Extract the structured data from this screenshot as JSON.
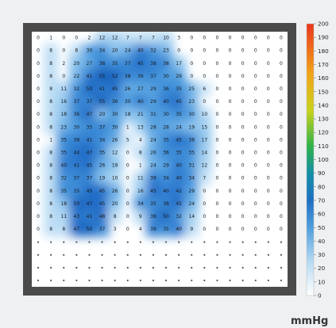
{
  "chart_data": {
    "type": "heatmap",
    "title": "",
    "xlabel": "",
    "ylabel": "",
    "unit": "mmHg",
    "color_scale": {
      "min": 0,
      "max": 200,
      "ticks": [
        200,
        190,
        180,
        170,
        160,
        150,
        140,
        130,
        120,
        110,
        100,
        90,
        80,
        70,
        60,
        50,
        40,
        30,
        20,
        10,
        0
      ],
      "colors": [
        "#ffffff",
        "#9fd0f0",
        "#4f9fdc",
        "#1f6fc4",
        "#138fa6",
        "#2fb24a",
        "#c8d21e",
        "#f2a21a",
        "#e8361c"
      ]
    },
    "rows": 20,
    "cols": 20,
    "values": [
      [
        0,
        1,
        0,
        0,
        2,
        12,
        12,
        7,
        7,
        7,
        10,
        3,
        0,
        0,
        0,
        0,
        0,
        0,
        0,
        0
      ],
      [
        0,
        8,
        0,
        8,
        30,
        34,
        20,
        24,
        40,
        32,
        23,
        0,
        0,
        0,
        0,
        0,
        0,
        0,
        0,
        0
      ],
      [
        0,
        8,
        2,
        20,
        27,
        38,
        35,
        37,
        45,
        38,
        38,
        17,
        0,
        0,
        0,
        0,
        0,
        0,
        0,
        0
      ],
      [
        0,
        8,
        0,
        22,
        41,
        55,
        52,
        38,
        36,
        37,
        30,
        29,
        0,
        0,
        0,
        0,
        0,
        0,
        0,
        0
      ],
      [
        0,
        8,
        11,
        32,
        50,
        41,
        45,
        26,
        27,
        29,
        36,
        35,
        25,
        6,
        0,
        0,
        0,
        0,
        0,
        0
      ],
      [
        0,
        8,
        16,
        37,
        37,
        55,
        36,
        30,
        40,
        29,
        40,
        45,
        23,
        0,
        0,
        0,
        0,
        0,
        0,
        0
      ],
      [
        0,
        8,
        18,
        36,
        47,
        20,
        30,
        18,
        21,
        31,
        30,
        35,
        30,
        10,
        0,
        0,
        0,
        0,
        0,
        0
      ],
      [
        0,
        8,
        23,
        30,
        35,
        37,
        30,
        1,
        13,
        28,
        28,
        24,
        19,
        15,
        0,
        0,
        0,
        0,
        0,
        0
      ],
      [
        0,
        1,
        35,
        38,
        41,
        34,
        26,
        5,
        4,
        24,
        35,
        45,
        38,
        17,
        0,
        0,
        0,
        0,
        0,
        0
      ],
      [
        0,
        8,
        35,
        44,
        47,
        35,
        12,
        0,
        8,
        26,
        36,
        35,
        35,
        14,
        0,
        0,
        0,
        0,
        0,
        0
      ],
      [
        0,
        8,
        40,
        41,
        45,
        26,
        19,
        0,
        1,
        24,
        29,
        40,
        31,
        12,
        0,
        0,
        0,
        0,
        0,
        0
      ],
      [
        0,
        8,
        32,
        37,
        37,
        19,
        10,
        0,
        11,
        39,
        34,
        40,
        34,
        7,
        0,
        0,
        0,
        0,
        0,
        0
      ],
      [
        0,
        8,
        35,
        35,
        45,
        45,
        26,
        0,
        16,
        45,
        40,
        42,
        29,
        0,
        0,
        0,
        0,
        0,
        0,
        0
      ],
      [
        0,
        8,
        18,
        50,
        47,
        45,
        20,
        0,
        34,
        35,
        38,
        45,
        24,
        0,
        0,
        0,
        0,
        0,
        0,
        0
      ],
      [
        0,
        8,
        11,
        43,
        41,
        48,
        8,
        0,
        9,
        38,
        50,
        32,
        14,
        0,
        0,
        0,
        0,
        0,
        0,
        0
      ],
      [
        0,
        8,
        8,
        47,
        50,
        37,
        3,
        0,
        4,
        39,
        35,
        40,
        9,
        0,
        0,
        0,
        0,
        0,
        0,
        0
      ],
      [
        0,
        0,
        0,
        0,
        0,
        0,
        0,
        0,
        0,
        0,
        0,
        0,
        0,
        0,
        0,
        0,
        0,
        0,
        0,
        0
      ],
      [
        0,
        0,
        0,
        0,
        0,
        0,
        0,
        0,
        0,
        0,
        0,
        0,
        0,
        0,
        0,
        0,
        0,
        0,
        0,
        0
      ],
      [
        0,
        0,
        0,
        0,
        0,
        0,
        0,
        0,
        0,
        0,
        0,
        0,
        0,
        0,
        0,
        0,
        0,
        0,
        0,
        0
      ],
      [
        0,
        0,
        0,
        0,
        0,
        0,
        0,
        0,
        0,
        0,
        0,
        0,
        0,
        0,
        0,
        0,
        0,
        0,
        0,
        0
      ]
    ]
  }
}
